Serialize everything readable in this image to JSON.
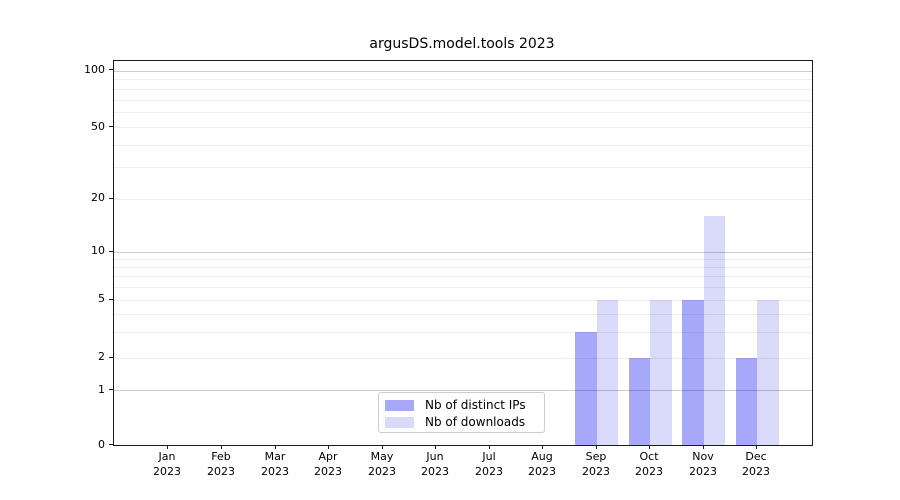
{
  "chart_data": {
    "type": "bar",
    "title": "argusDS.model.tools 2023",
    "categories": [
      "Jan",
      "Feb",
      "Mar",
      "Apr",
      "May",
      "Jun",
      "Jul",
      "Aug",
      "Sep",
      "Oct",
      "Nov",
      "Dec"
    ],
    "x_year_label": "2023",
    "series": [
      {
        "name": "Nb of distinct IPs",
        "color": "#a8a8fa",
        "values": [
          0,
          0,
          0,
          0,
          0,
          0,
          0,
          0,
          3,
          2,
          5,
          2
        ]
      },
      {
        "name": "Nb of downloads",
        "color": "#dadafa",
        "values": [
          0,
          0,
          0,
          0,
          0,
          0,
          0,
          0,
          5,
          5,
          16,
          5
        ]
      }
    ],
    "y_ticks": [
      0,
      1,
      2,
      5,
      10,
      20,
      50,
      100
    ],
    "y_major_gridlines": [
      1,
      10,
      100
    ],
    "y_minor_gridlines": [
      2,
      3,
      4,
      5,
      6,
      7,
      8,
      9,
      20,
      30,
      40,
      50,
      60,
      70,
      80,
      90
    ],
    "y_scale": "symlog (linear 0-1, logarithmic above 1)",
    "ylim": [
      0,
      110
    ],
    "xlabel": "",
    "ylabel": "",
    "grid": true,
    "legend_position": "lower center (inside axes)"
  }
}
